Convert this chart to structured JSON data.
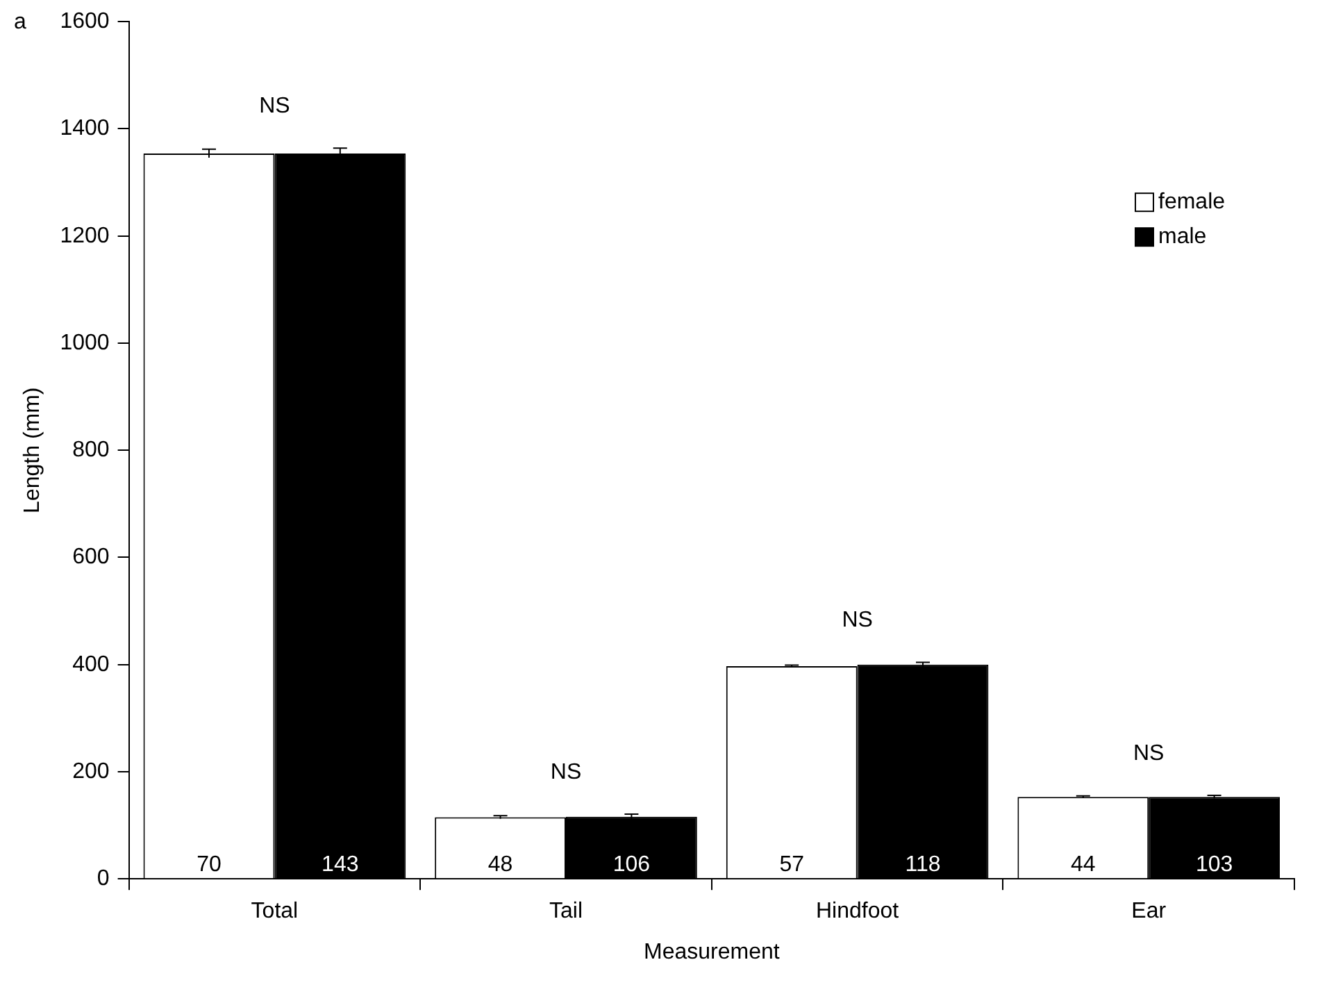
{
  "chart_data": {
    "type": "bar",
    "xlabel": "Measurement",
    "ylabel": "Length (mm)",
    "categories": [
      "Total",
      "Tail",
      "Hindfoot",
      "Ear"
    ],
    "series": [
      {
        "name": "female",
        "color": "#ffffff",
        "values": [
          1354,
          115,
          397,
          153
        ],
        "errors": [
          8,
          3,
          2,
          2
        ]
      },
      {
        "name": "male",
        "color": "#000000",
        "values": [
          1354,
          116,
          400,
          153
        ],
        "errors": [
          10,
          5,
          4,
          3
        ]
      }
    ],
    "ylim": [
      0,
      1600
    ],
    "yticks": [
      0,
      200,
      400,
      600,
      800,
      1000,
      1200,
      1400,
      1600
    ],
    "grid": false,
    "legend": "top right",
    "annotations": [
      "a",
      "NS",
      "NS",
      "NS",
      "NS",
      "70",
      "143",
      "48",
      "106",
      "57",
      "118",
      "44",
      "103"
    ]
  }
}
